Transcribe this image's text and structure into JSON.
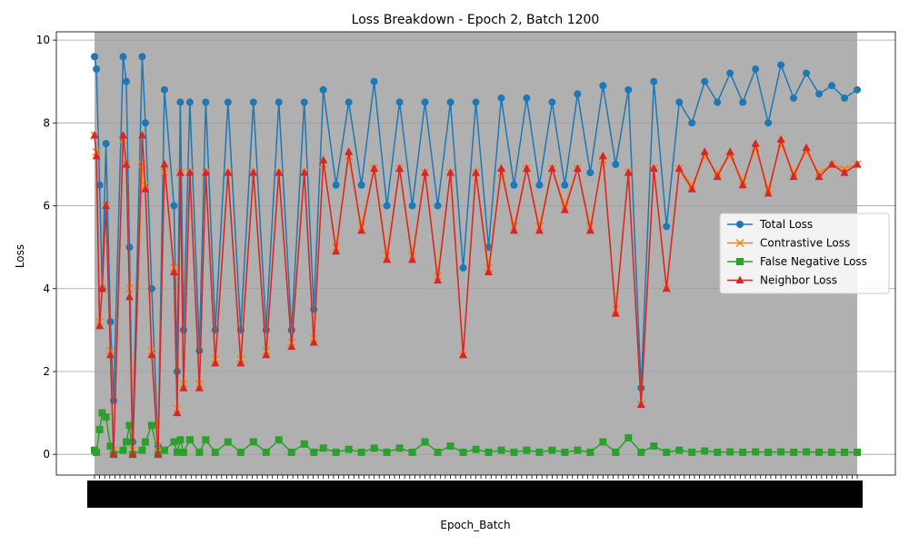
{
  "chart_data": {
    "type": "line",
    "title": "Loss Breakdown - Epoch 2, Batch 1200",
    "xlabel": "Epoch_Batch",
    "ylabel": "Loss",
    "xlim": [
      0,
      1200
    ],
    "ylim": [
      -0.5,
      10.2
    ],
    "y_ticks": [
      0,
      2,
      4,
      6,
      8,
      10
    ],
    "grid": true,
    "legend_position": "center-right",
    "background_color": "#b0b0b0",
    "series": [
      {
        "name": "Total Loss",
        "color": "#1f77b4",
        "marker": "circle",
        "x": [
          0,
          3,
          8,
          12,
          18,
          25,
          30,
          45,
          50,
          55,
          60,
          75,
          80,
          90,
          100,
          110,
          125,
          130,
          135,
          140,
          150,
          165,
          175,
          190,
          210,
          230,
          250,
          270,
          290,
          310,
          330,
          345,
          360,
          380,
          400,
          420,
          440,
          460,
          480,
          500,
          520,
          540,
          560,
          580,
          600,
          620,
          640,
          660,
          680,
          700,
          720,
          740,
          760,
          780,
          800,
          820,
          840,
          860,
          880,
          900,
          920,
          940,
          960,
          980,
          1000,
          1020,
          1040,
          1060,
          1080,
          1100,
          1120,
          1140,
          1160,
          1180,
          1200
        ],
        "y": [
          9.6,
          9.3,
          6.5,
          4.0,
          7.5,
          3.2,
          1.3,
          9.6,
          9.0,
          5.0,
          0.3,
          9.6,
          8.0,
          4.0,
          0.2,
          8.8,
          6.0,
          2.0,
          8.5,
          3.0,
          8.5,
          2.5,
          8.5,
          3.0,
          8.5,
          3.0,
          8.5,
          3.0,
          8.5,
          3.0,
          8.5,
          3.5,
          8.8,
          6.5,
          8.5,
          6.5,
          9.0,
          6.0,
          8.5,
          6.0,
          8.5,
          6.0,
          8.5,
          4.5,
          8.5,
          5.0,
          8.6,
          6.5,
          8.6,
          6.5,
          8.5,
          6.5,
          8.7,
          6.8,
          8.9,
          7.0,
          8.8,
          1.6,
          9.0,
          5.5,
          8.5,
          8.0,
          9.0,
          8.5,
          9.2,
          8.5,
          9.3,
          8.0,
          9.4,
          8.6,
          9.2,
          8.7,
          8.9,
          8.6,
          8.8
        ]
      },
      {
        "name": "Contrastive Loss",
        "color": "#ff7f0e",
        "marker": "x",
        "x": [
          0,
          3,
          8,
          12,
          18,
          25,
          30,
          45,
          50,
          55,
          60,
          75,
          80,
          90,
          100,
          110,
          125,
          130,
          135,
          140,
          150,
          165,
          175,
          190,
          210,
          230,
          250,
          270,
          290,
          310,
          330,
          345,
          360,
          380,
          400,
          420,
          440,
          460,
          480,
          500,
          520,
          540,
          560,
          580,
          600,
          620,
          640,
          660,
          680,
          700,
          720,
          740,
          760,
          780,
          800,
          820,
          840,
          860,
          880,
          900,
          920,
          940,
          960,
          980,
          1000,
          1020,
          1040,
          1060,
          1080,
          1100,
          1120,
          1140,
          1160,
          1180,
          1200
        ],
        "y": [
          7.7,
          7.3,
          3.2,
          4.0,
          6.0,
          2.5,
          0.1,
          7.6,
          7.0,
          4.0,
          0.1,
          7.0,
          6.5,
          2.5,
          0.2,
          6.8,
          4.5,
          1.1,
          6.8,
          1.7,
          6.8,
          1.7,
          6.8,
          2.3,
          6.8,
          2.3,
          6.8,
          2.5,
          6.8,
          2.7,
          6.8,
          2.8,
          7.0,
          5.0,
          7.2,
          5.5,
          6.9,
          4.8,
          6.9,
          4.8,
          6.8,
          4.3,
          6.8,
          2.4,
          6.8,
          4.5,
          6.8,
          5.5,
          6.9,
          5.5,
          6.9,
          6.0,
          6.9,
          5.5,
          7.1,
          3.5,
          6.8,
          1.2,
          6.9,
          4.0,
          6.9,
          6.5,
          7.2,
          6.8,
          7.2,
          6.6,
          7.4,
          6.4,
          7.5,
          6.8,
          7.3,
          6.8,
          7.0,
          6.9,
          7.0
        ]
      },
      {
        "name": "False Negative Loss",
        "color": "#2ca02c",
        "marker": "square",
        "x": [
          0,
          3,
          8,
          12,
          18,
          25,
          30,
          45,
          50,
          55,
          60,
          75,
          80,
          90,
          100,
          110,
          125,
          130,
          135,
          140,
          150,
          165,
          175,
          190,
          210,
          230,
          250,
          270,
          290,
          310,
          330,
          345,
          360,
          380,
          400,
          420,
          440,
          460,
          480,
          500,
          520,
          540,
          560,
          580,
          600,
          620,
          640,
          660,
          680,
          700,
          720,
          740,
          760,
          780,
          800,
          820,
          840,
          860,
          880,
          900,
          920,
          940,
          960,
          980,
          1000,
          1020,
          1040,
          1060,
          1080,
          1100,
          1120,
          1140,
          1160,
          1180,
          1200
        ],
        "y": [
          0.1,
          0.05,
          0.6,
          1.0,
          0.9,
          0.2,
          0.0,
          0.1,
          0.3,
          0.7,
          0.0,
          0.1,
          0.3,
          0.7,
          0.0,
          0.1,
          0.3,
          0.05,
          0.35,
          0.05,
          0.35,
          0.05,
          0.35,
          0.05,
          0.3,
          0.05,
          0.3,
          0.05,
          0.35,
          0.05,
          0.25,
          0.05,
          0.15,
          0.05,
          0.12,
          0.05,
          0.15,
          0.05,
          0.15,
          0.05,
          0.3,
          0.05,
          0.2,
          0.05,
          0.12,
          0.05,
          0.1,
          0.05,
          0.1,
          0.05,
          0.1,
          0.05,
          0.1,
          0.05,
          0.3,
          0.05,
          0.4,
          0.05,
          0.2,
          0.05,
          0.1,
          0.05,
          0.08,
          0.05,
          0.06,
          0.05,
          0.06,
          0.05,
          0.06,
          0.05,
          0.06,
          0.05,
          0.05,
          0.05,
          0.05
        ]
      },
      {
        "name": "Neighbor Loss",
        "color": "#d62728",
        "marker": "triangle",
        "x": [
          0,
          3,
          8,
          12,
          18,
          25,
          30,
          45,
          50,
          55,
          60,
          75,
          80,
          90,
          100,
          110,
          125,
          130,
          135,
          140,
          150,
          165,
          175,
          190,
          210,
          230,
          250,
          270,
          290,
          310,
          330,
          345,
          360,
          380,
          400,
          420,
          440,
          460,
          480,
          500,
          520,
          540,
          560,
          580,
          600,
          620,
          640,
          660,
          680,
          700,
          720,
          740,
          760,
          780,
          800,
          820,
          840,
          860,
          880,
          900,
          920,
          940,
          960,
          980,
          1000,
          1020,
          1040,
          1060,
          1080,
          1100,
          1120,
          1140,
          1160,
          1180,
          1200
        ],
        "y": [
          7.7,
          7.2,
          3.1,
          4.0,
          6.0,
          2.4,
          0.0,
          7.7,
          7.0,
          3.8,
          0.0,
          7.7,
          6.4,
          2.4,
          0.0,
          7.0,
          4.4,
          1.0,
          6.8,
          1.6,
          6.8,
          1.6,
          6.8,
          2.2,
          6.8,
          2.2,
          6.8,
          2.4,
          6.8,
          2.6,
          6.8,
          2.7,
          7.1,
          4.9,
          7.3,
          5.4,
          6.9,
          4.7,
          6.9,
          4.7,
          6.8,
          4.2,
          6.8,
          2.4,
          6.8,
          4.4,
          6.9,
          5.4,
          6.9,
          5.4,
          6.9,
          5.9,
          6.9,
          5.4,
          7.2,
          3.4,
          6.8,
          1.2,
          6.9,
          4.0,
          6.9,
          6.4,
          7.3,
          6.7,
          7.3,
          6.5,
          7.5,
          6.3,
          7.6,
          6.7,
          7.4,
          6.7,
          7.0,
          6.8,
          7.0
        ]
      }
    ]
  }
}
